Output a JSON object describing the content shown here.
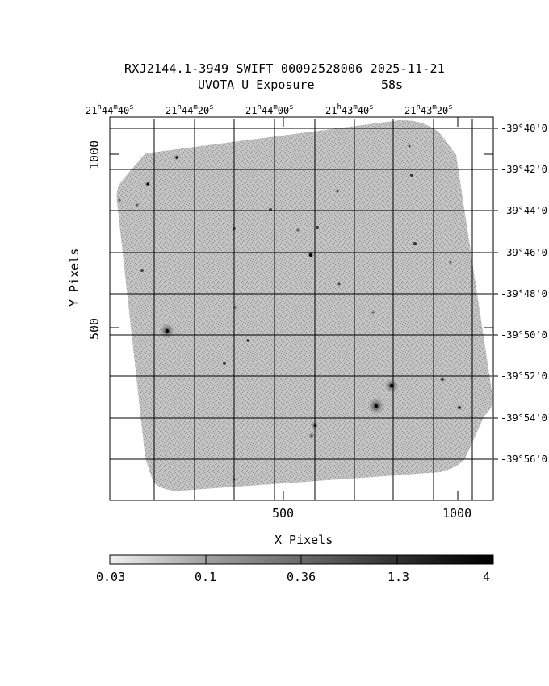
{
  "title": {
    "line1": "RXJ2144.1-3949 SWIFT 00092528006 2025-11-21",
    "line2": "UVOTA U Exposure",
    "exposure": "58s"
  },
  "axes": {
    "xlabel": "X Pixels",
    "ylabel": "Y Pixels",
    "x_ticks": [
      "500",
      "1000"
    ],
    "y_ticks": [
      "1000",
      "500"
    ],
    "ra_labels": [
      {
        "h": "21",
        "hu": "h",
        "m": "44",
        "mu": "m",
        "s": "40",
        "su": "s"
      },
      {
        "h": "21",
        "hu": "h",
        "m": "44",
        "mu": "m",
        "s": "20",
        "su": "s"
      },
      {
        "h": "21",
        "hu": "h",
        "m": "44",
        "mu": "m",
        "s": "00",
        "su": "s"
      },
      {
        "h": "21",
        "hu": "h",
        "m": "43",
        "mu": "m",
        "s": "40",
        "su": "s"
      },
      {
        "h": "21",
        "hu": "h",
        "m": "43",
        "mu": "m",
        "s": "20",
        "su": "s"
      }
    ],
    "dec_labels": [
      "-39°40'0",
      "-39°42'0",
      "-39°44'0",
      "-39°46'0",
      "-39°48'0",
      "-39°50'0",
      "-39°52'0",
      "-39°54'0",
      "-39°56'0"
    ]
  },
  "colorbar": {
    "labels": [
      "0.03",
      "0.1",
      "0.36",
      "1.3",
      "4"
    ],
    "colors": [
      "#f2f2f2",
      "#a8a8a8",
      "#6a6a6a",
      "#303030",
      "#000000"
    ]
  },
  "colors": {
    "field": "#b0b0b0",
    "grid": "#000000"
  }
}
